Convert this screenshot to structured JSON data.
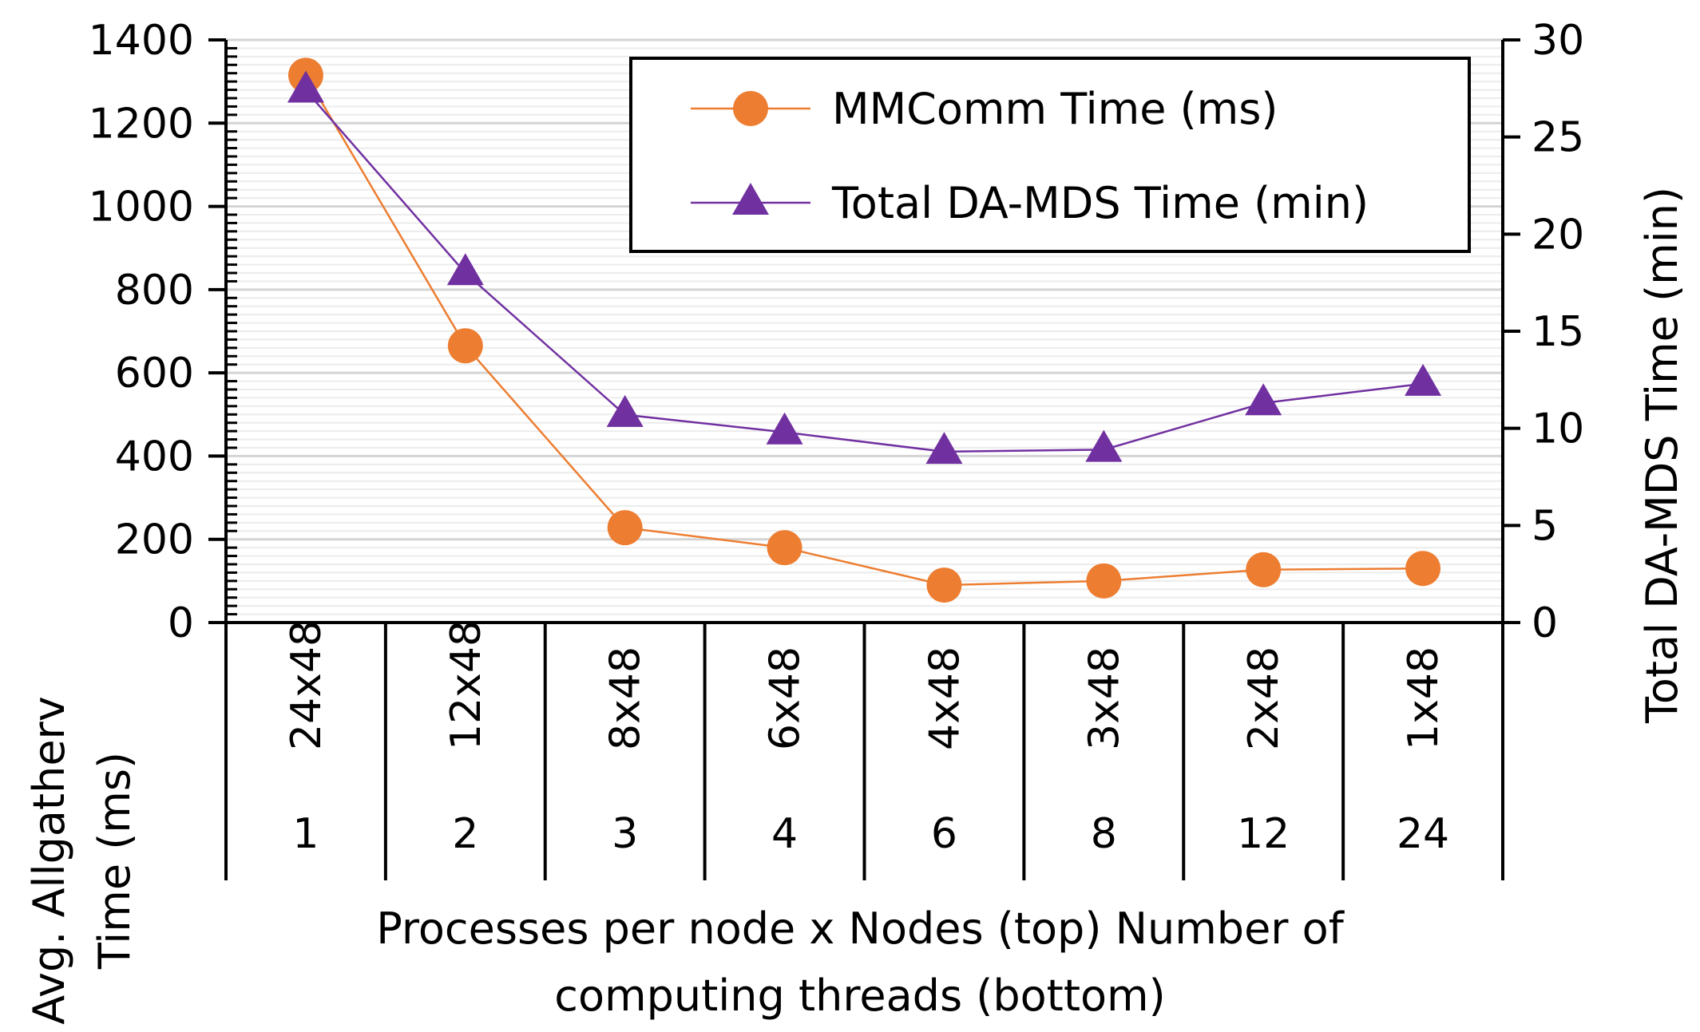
{
  "chart_data": {
    "type": "line",
    "categories_top": [
      "24x48",
      "12x48",
      "8x48",
      "6x48",
      "4x48",
      "3x48",
      "2x48",
      "1x48"
    ],
    "categories_bottom": [
      "1",
      "2",
      "3",
      "4",
      "6",
      "8",
      "12",
      "24"
    ],
    "xlabel": "Processes per node x Nodes (top) Number of computing threads (bottom)",
    "xlabel_lines": [
      "Processes per node x Nodes (top) Number of",
      "computing threads (bottom)"
    ],
    "ylabel_left": "Avg. Allgatherv Time (ms)",
    "ylabel_left_lines": [
      "Avg. Allgatherv",
      "Time (ms)"
    ],
    "ylabel_right": "Total DA-MDS Time (min)",
    "ylim_left": [
      0,
      1400
    ],
    "ylim_right": [
      0,
      30
    ],
    "yticks_left": [
      "0",
      "200",
      "400",
      "600",
      "800",
      "1000",
      "1200",
      "1400"
    ],
    "yticks_right": [
      "0",
      "5",
      "10",
      "15",
      "20",
      "25",
      "30"
    ],
    "grid": true,
    "legend_position": "top-right",
    "series": [
      {
        "name": "MMComm Time (ms)",
        "axis": "left",
        "marker": "circle",
        "color": "#ED7D31",
        "values": [
          1315,
          665,
          228,
          180,
          90,
          100,
          127,
          130
        ]
      },
      {
        "name": "Total DA-MDS Time (min)",
        "axis": "right",
        "marker": "triangle",
        "color": "#7030A0",
        "values": [
          27.4,
          18.0,
          10.7,
          9.8,
          8.8,
          8.9,
          11.3,
          12.3
        ]
      }
    ]
  }
}
